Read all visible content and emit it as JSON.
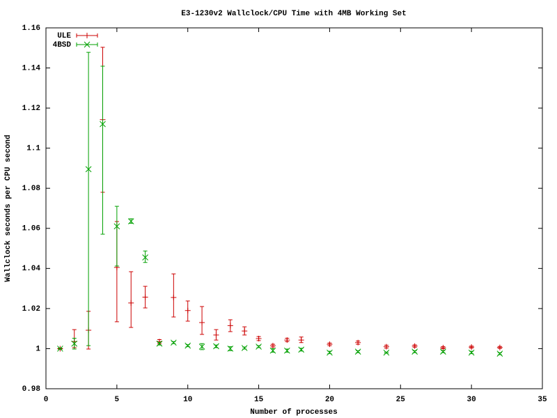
{
  "chart_data": {
    "type": "errorbar",
    "title": "E3-1230v2 Wallclock/CPU Time with 4MB Working Set",
    "x_label": "Number of processes",
    "y_label": "Wallclock seconds per CPU second",
    "xlim": [
      0,
      35
    ],
    "xticks": [
      0,
      5,
      10,
      15,
      20,
      25,
      30,
      35
    ],
    "ylim": [
      0.98,
      1.16
    ],
    "yticks": [
      0.98,
      1,
      1.02,
      1.04,
      1.06,
      1.08,
      1.1,
      1.12,
      1.14,
      1.16
    ],
    "legend": "top-left",
    "x": [
      1,
      2,
      3,
      4,
      5,
      6,
      7,
      8,
      9,
      10,
      11,
      12,
      13,
      14,
      15,
      16,
      17,
      18,
      20,
      22,
      24,
      26,
      28,
      30,
      32
    ],
    "series": [
      {
        "name": "ULE",
        "color": "#cc0000",
        "marker": "plus",
        "values": [
          1.0,
          1.0035,
          1.0092,
          1.1142,
          1.0405,
          1.0228,
          1.0257,
          1.0035,
          1.0255,
          1.019,
          1.013,
          1.0068,
          1.0115,
          1.0088,
          1.005,
          1.0015,
          1.0043,
          1.0043,
          1.0022,
          1.003,
          1.001,
          1.0013,
          1.0005,
          1.0008,
          1.0006
        ],
        "lows": [
          0.9997,
          1.0005,
          0.9998,
          1.078,
          1.0134,
          1.0106,
          1.0203,
          1.0025,
          1.0158,
          1.0137,
          1.0071,
          1.0043,
          1.0085,
          1.0068,
          1.004,
          1.0008,
          1.0035,
          1.003,
          1.0015,
          1.0022,
          1.0003,
          1.0007,
          1.0,
          1.0003,
          1.0001
        ],
        "highs": [
          1.0003,
          1.0095,
          1.0186,
          1.1503,
          1.0634,
          1.0384,
          1.0311,
          1.0045,
          1.0373,
          1.0238,
          1.021,
          1.0095,
          1.0144,
          1.0109,
          1.006,
          1.0022,
          1.0052,
          1.0058,
          1.0028,
          1.0038,
          1.0017,
          1.0019,
          1.001,
          1.0013,
          1.0011
        ]
      },
      {
        "name": "4BSD",
        "color": "#00a000",
        "marker": "cross",
        "values": [
          1.0,
          1.0025,
          1.0895,
          1.112,
          1.061,
          1.0635,
          1.0455,
          1.0025,
          1.003,
          1.0015,
          1.001,
          1.0012,
          1.0,
          1.0003,
          1.001,
          0.999,
          0.999,
          0.9995,
          0.998,
          0.9985,
          0.998,
          0.9985,
          0.9985,
          0.998,
          0.9975
        ],
        "lows": [
          0.9997,
          0.9998,
          1.0015,
          1.0571,
          1.0412,
          1.0625,
          1.043,
          1.0018,
          1.0025,
          1.001,
          0.9995,
          1.0005,
          0.999,
          0.9998,
          1.0005,
          0.9982,
          0.9982,
          0.9988,
          0.9975,
          0.998,
          0.9977,
          0.998,
          0.998,
          0.9975,
          0.997
        ],
        "highs": [
          1.0003,
          1.0052,
          1.1478,
          1.1409,
          1.071,
          1.0648,
          1.0487,
          1.0032,
          1.0035,
          1.002,
          1.0025,
          1.0018,
          1.001,
          1.0008,
          1.0015,
          1.0,
          0.9998,
          1.0002,
          0.9987,
          0.999,
          0.9983,
          0.999,
          0.999,
          0.9987,
          0.998
        ]
      }
    ]
  }
}
